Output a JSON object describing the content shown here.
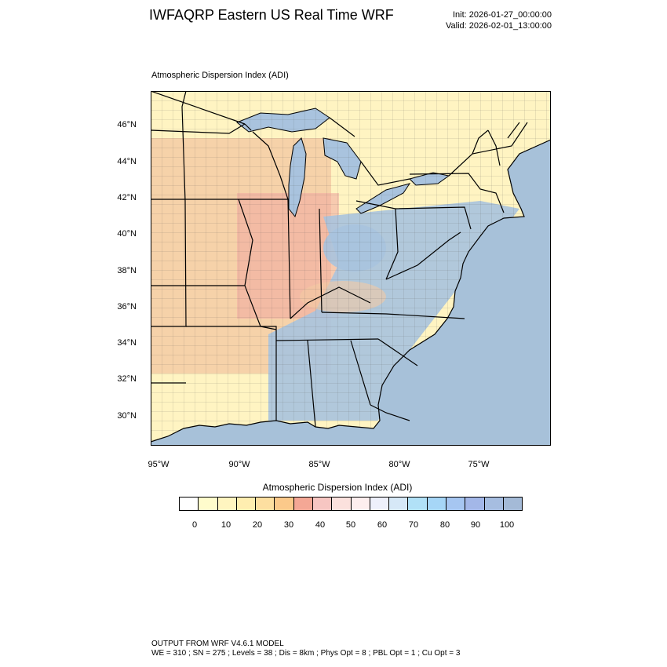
{
  "header": {
    "title": "IWFAQRP Eastern US Real Time WRF",
    "init": "Init: 2026-01-27_00:00:00",
    "valid": "Valid: 2026-02-01_13:00:00"
  },
  "plot": {
    "subtitle": "Atmospheric Dispersion Index   (ADI)"
  },
  "map": {
    "lat_labels": [
      "46°N",
      "44°N",
      "42°N",
      "40°N",
      "38°N",
      "36°N",
      "34°N",
      "32°N",
      "30°N"
    ],
    "lon_labels": [
      "95°W",
      "90°W",
      "85°W",
      "80°W",
      "75°W"
    ],
    "colors": {
      "ocean": "#a7c1d9",
      "border": "#000000",
      "low": "#fff4c2",
      "mid": "#f4c9a3",
      "high": "#f1a7a0",
      "cool": "#a9c3de"
    }
  },
  "colorbar": {
    "title": "Atmospheric Dispersion Index  (ADI)",
    "colors": [
      "#ffffff",
      "#fffccc",
      "#fff5c0",
      "#ffeeb0",
      "#fddfa0",
      "#fbc98a",
      "#f4a795",
      "#f7c6c2",
      "#fbe1dd",
      "#fdeeee",
      "#eef0fb",
      "#d6e8f7",
      "#b1e1f7",
      "#a6d6f7",
      "#a6c6f1",
      "#a3b7e8",
      "#a6bde0",
      "#a4bad7"
    ],
    "ticks": [
      "0",
      "10",
      "20",
      "30",
      "40",
      "50",
      "60",
      "70",
      "80",
      "90",
      "100"
    ]
  },
  "footer": {
    "line1": "OUTPUT FROM WRF V4.6.1 MODEL",
    "line2": "WE = 310 ; SN = 275 ; Levels = 38 ; Dis = 8km ; Phys Opt = 8 ; PBL Opt = 1 ; Cu Opt = 3"
  }
}
